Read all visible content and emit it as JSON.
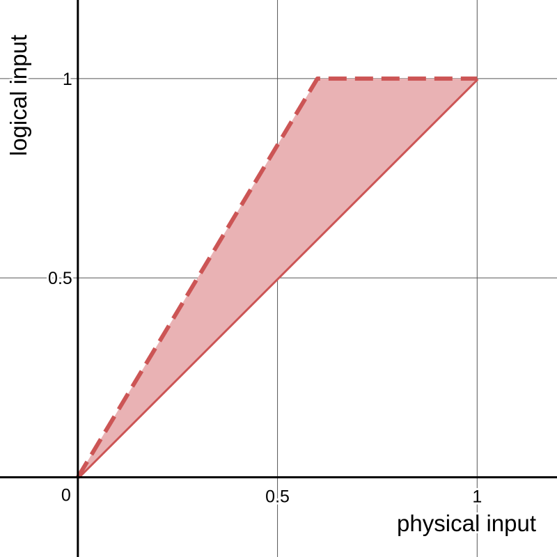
{
  "chart_data": {
    "type": "line",
    "x_label": "physical input",
    "y_label": "logical input",
    "origin_label": "0",
    "x": [
      0,
      0.6,
      1
    ],
    "series": [
      {
        "color": "#cc5555",
        "dashed": false,
        "values": [
          0,
          0.6,
          1
        ]
      },
      {
        "color": "#cc5555",
        "dashed": true,
        "fill": "#e9b2b4",
        "values": [
          0,
          1,
          1
        ]
      }
    ],
    "xlim": [
      -0.195,
      1.2
    ],
    "ylim": [
      -0.2,
      1.197
    ],
    "xticks": [
      0.5,
      1
    ],
    "yticks": [
      0.5,
      1
    ],
    "grid": true
  }
}
